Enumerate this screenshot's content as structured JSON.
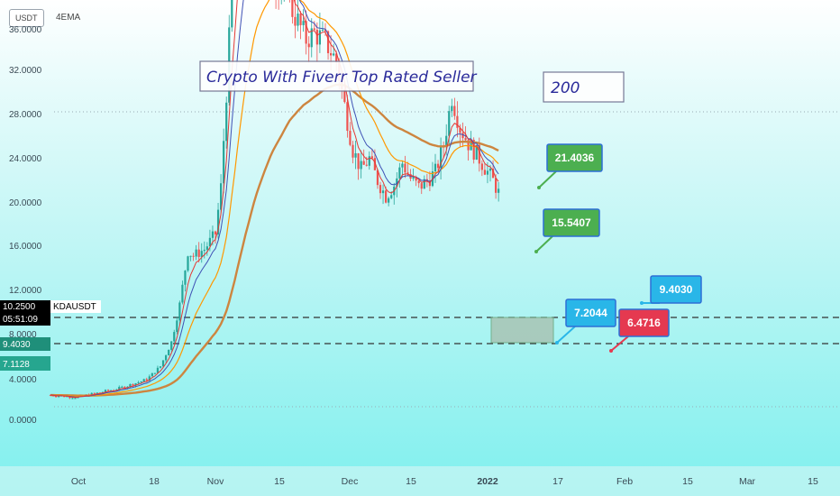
{
  "header": {
    "symbol_chip": "USDT",
    "indicator": "4EMA"
  },
  "chart_data": {
    "type": "candlestick",
    "y_ticks": [
      "0.0000",
      "4.0000",
      "8.0000",
      "12.0000",
      "16.0000",
      "20.0000",
      "24.0000",
      "28.0000",
      "32.0000",
      "36.0000"
    ],
    "x_ticks": [
      {
        "label": "Oct",
        "bold": false
      },
      {
        "label": "18",
        "bold": false
      },
      {
        "label": "Nov",
        "bold": false
      },
      {
        "label": "15",
        "bold": false
      },
      {
        "label": "Dec",
        "bold": false
      },
      {
        "label": "15",
        "bold": false
      },
      {
        "label": "2022",
        "bold": true
      },
      {
        "label": "17",
        "bold": false
      },
      {
        "label": "Feb",
        "bold": false
      },
      {
        "label": "15",
        "bold": false
      },
      {
        "label": "Mar",
        "bold": false
      },
      {
        "label": "15",
        "bold": false
      }
    ],
    "ylim": [
      -2,
      36
    ],
    "price_labels": [
      {
        "text": "10.2500",
        "color": "#000000"
      },
      {
        "text": "05:51:09",
        "color": "#000000"
      },
      {
        "text": "KDAUSDT",
        "color": "#000000"
      },
      {
        "text": "9.4030",
        "color": "#1f8f7a"
      },
      {
        "text": "7.1128",
        "color": "#26a68f"
      }
    ],
    "title_box": "Crypto With Fiverr Top Rated Seller",
    "count_box": "200",
    "callouts": [
      {
        "text": "21.4036",
        "color": "#4caf50"
      },
      {
        "text": "15.5407",
        "color": "#4caf50"
      },
      {
        "text": "7.2044",
        "color": "#29b6e8"
      },
      {
        "text": "9.4030",
        "color": "#29b6e8"
      },
      {
        "text": "6.4716",
        "color": "#e53950"
      }
    ],
    "colors": {
      "up": "#26a69a",
      "down": "#ef5350",
      "ema_fast": "#e53935",
      "ema_mid": "#3f51b5",
      "ema_slow": "#ff9800",
      "ema_long": "#cd853f"
    }
  }
}
